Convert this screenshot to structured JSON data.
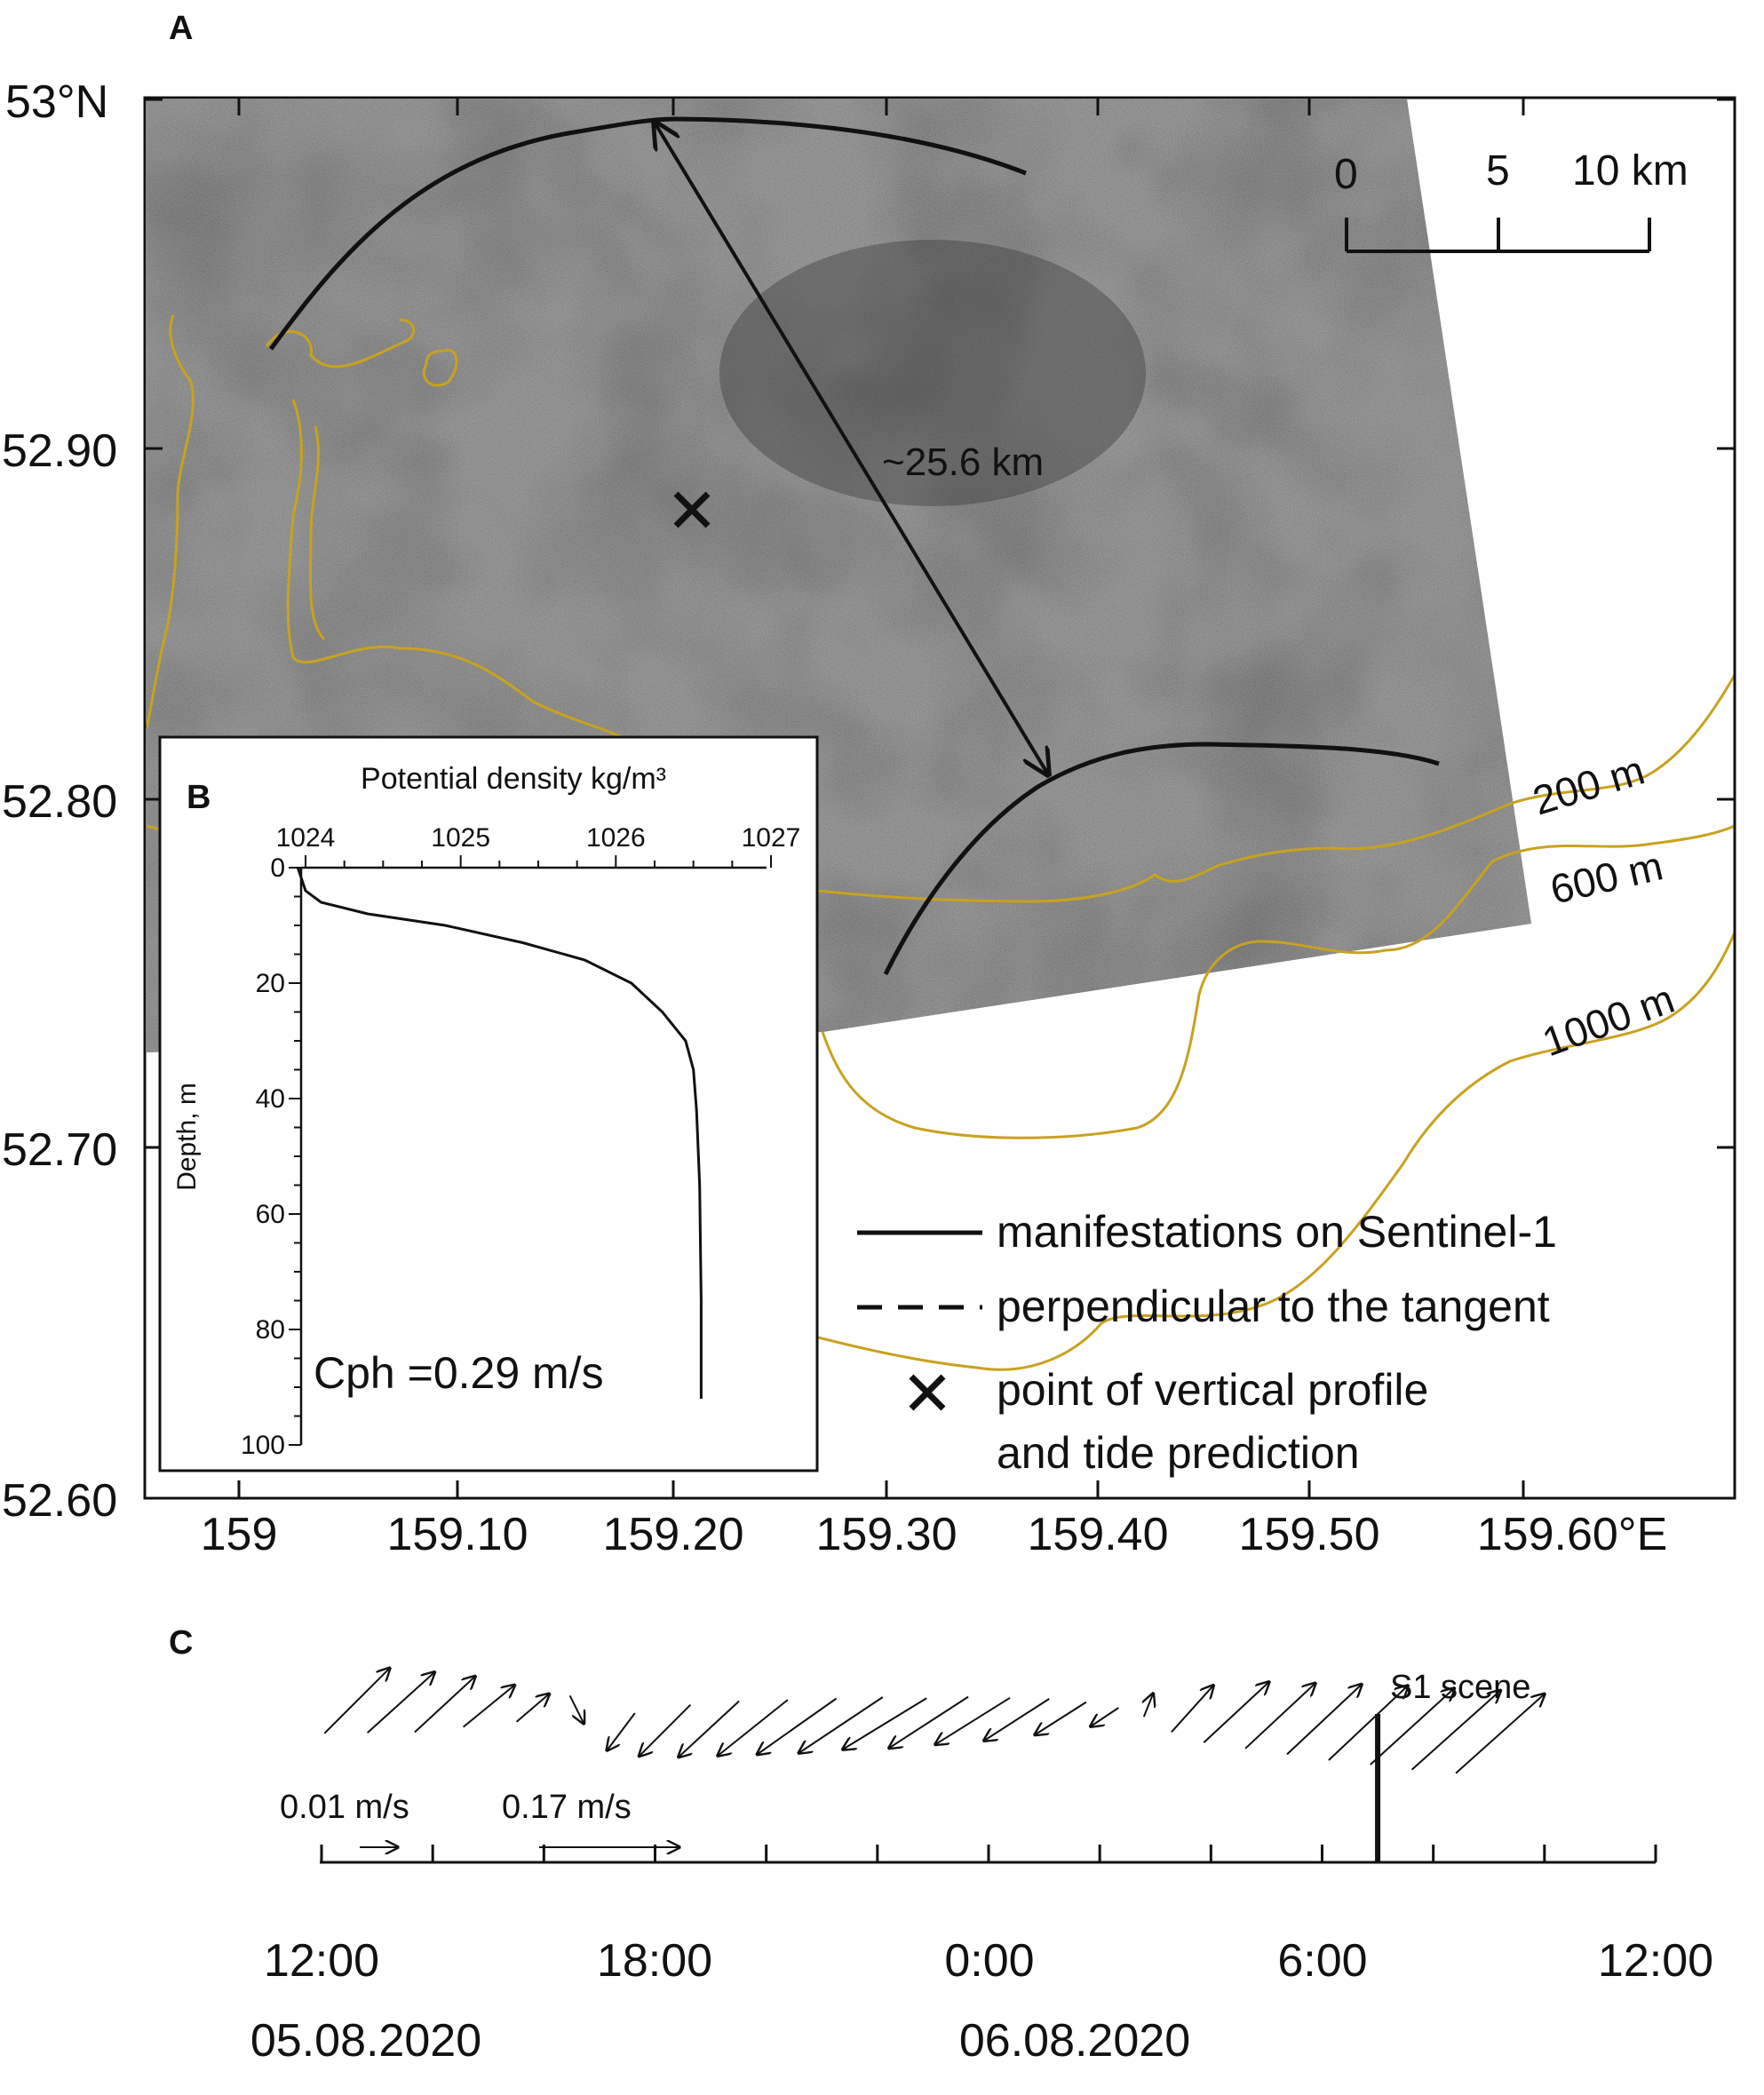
{
  "panels": {
    "a_label": "A",
    "b_label": "B",
    "c_label": "C"
  },
  "colors": {
    "sar_dark": "#3a3a3a",
    "sar_light": "#6e6e6e",
    "isobath": "#c8a21e",
    "ink": "#111111"
  },
  "map": {
    "lat_ticks": [
      "53°N",
      "52.90",
      "52.80",
      "52.70",
      "52.60"
    ],
    "lon_ticks": [
      "159",
      "159.10",
      "159.20",
      "159.30",
      "159.40",
      "159.50",
      "159.60°E"
    ],
    "scalebar": [
      "0",
      "5",
      "10 km"
    ],
    "distance_label": "~25.6 km",
    "isobaths": [
      "200 m",
      "600 m",
      "1000 m"
    ],
    "legend": {
      "solid": "manifestations on Sentinel-1",
      "dashed": "perpendicular to the tangent",
      "cross_1": "point of vertical profile",
      "cross_2": "and tide prediction"
    }
  },
  "chart_data": [
    {
      "type": "line",
      "panel": "B",
      "xlabel": "Potential density kg/m³",
      "ylabel": "Depth, m",
      "xlim": [
        1024,
        1027
      ],
      "ylim": [
        100,
        0
      ],
      "x_ticks": [
        "1024",
        "1025",
        "1026",
        "1027"
      ],
      "y_ticks": [
        "0",
        "20",
        "40",
        "60",
        "80",
        "100"
      ],
      "annotation": "Cph =0.29 m/s",
      "series": [
        {
          "x": [
            1023.95,
            1024.0,
            1024.1,
            1024.4,
            1024.9,
            1025.4,
            1025.8,
            1026.1,
            1026.3,
            1026.45,
            1026.5,
            1026.52,
            1026.54,
            1026.55,
            1026.55
          ],
          "y": [
            0,
            4,
            6,
            8,
            10,
            13,
            16,
            20,
            25,
            30,
            35,
            42,
            55,
            75,
            92
          ]
        }
      ]
    },
    {
      "type": "quiver",
      "panel": "C",
      "x_ticks": [
        "12:00\n05.08.2020",
        "18:00",
        "0:00\n06.08.2020",
        "6:00",
        "12:00"
      ],
      "x_tick_hours": [
        0,
        6,
        12,
        18,
        24
      ],
      "scale_labels": [
        "0.01 m/s",
        "0.17 m/s"
      ],
      "scale_speeds": [
        0.01,
        0.17
      ],
      "event_label": "S1 scene",
      "event_hour": 19,
      "vectors": [
        {
          "dx": 0.7,
          "dy": 0.7
        },
        {
          "dx": 0.72,
          "dy": 0.65
        },
        {
          "dx": 0.65,
          "dy": 0.6
        },
        {
          "dx": 0.55,
          "dy": 0.45
        },
        {
          "dx": 0.35,
          "dy": 0.3
        },
        {
          "dx": 0.15,
          "dy": -0.3
        },
        {
          "dx": -0.3,
          "dy": -0.4
        },
        {
          "dx": -0.55,
          "dy": -0.55
        },
        {
          "dx": -0.65,
          "dy": -0.6
        },
        {
          "dx": -0.75,
          "dy": -0.6
        },
        {
          "dx": -0.85,
          "dy": -0.6
        },
        {
          "dx": -0.9,
          "dy": -0.6
        },
        {
          "dx": -0.9,
          "dy": -0.55
        },
        {
          "dx": -0.85,
          "dy": -0.55
        },
        {
          "dx": -0.8,
          "dy": -0.5
        },
        {
          "dx": -0.7,
          "dy": -0.45
        },
        {
          "dx": -0.55,
          "dy": -0.35
        },
        {
          "dx": -0.3,
          "dy": -0.2
        },
        {
          "dx": 0.1,
          "dy": 0.25
        },
        {
          "dx": 0.45,
          "dy": 0.5
        },
        {
          "dx": 0.7,
          "dy": 0.65
        },
        {
          "dx": 0.75,
          "dy": 0.7
        },
        {
          "dx": 0.8,
          "dy": 0.75
        },
        {
          "dx": 0.85,
          "dy": 0.8
        },
        {
          "dx": 0.9,
          "dy": 0.82
        },
        {
          "dx": 0.95,
          "dy": 0.85
        },
        {
          "dx": 0.95,
          "dy": 0.85
        }
      ]
    }
  ]
}
